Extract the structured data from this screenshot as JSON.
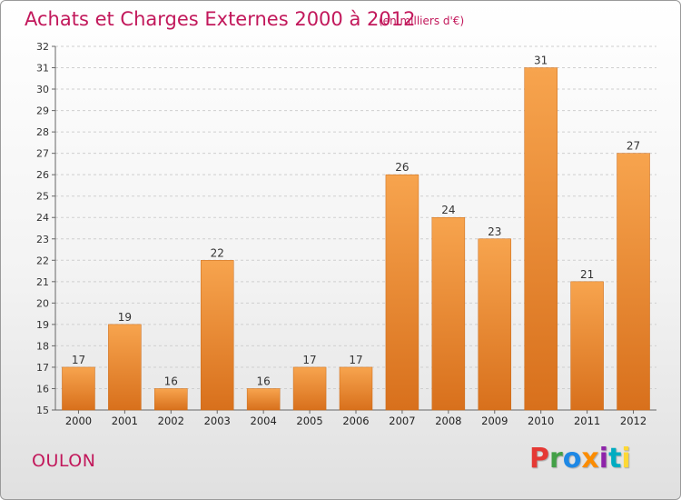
{
  "header": {
    "title": "Achats et Charges Externes 2000 à 2012",
    "subtitle": "(en milliers d'€)"
  },
  "commune": "OULON",
  "brand": {
    "letters": [
      "P",
      "r",
      "o",
      "x",
      "i",
      "t",
      "i"
    ],
    "colors": [
      "#e53935",
      "#43a047",
      "#1e88e5",
      "#fb8c00",
      "#8e24aa",
      "#00acc1",
      "#fdd835"
    ]
  },
  "chart_data": {
    "type": "bar",
    "categories": [
      "2000",
      "2001",
      "2002",
      "2003",
      "2004",
      "2005",
      "2006",
      "2007",
      "2008",
      "2009",
      "2010",
      "2011",
      "2012"
    ],
    "values": [
      17,
      19,
      16,
      22,
      16,
      17,
      17,
      26,
      24,
      23,
      31,
      21,
      27
    ],
    "title": "Achats et Charges Externes 2000 à 2012",
    "subtitle": "(en milliers d'€)",
    "xlabel": "",
    "ylabel": "",
    "ylim": [
      15,
      32
    ],
    "yticks": [
      15,
      16,
      17,
      18,
      19,
      20,
      21,
      22,
      23,
      24,
      25,
      26,
      27,
      28,
      29,
      30,
      31,
      32
    ],
    "grid": true,
    "legend": "none",
    "bar_color": "#f08a2c",
    "grid_color": "#cfcfcf"
  }
}
